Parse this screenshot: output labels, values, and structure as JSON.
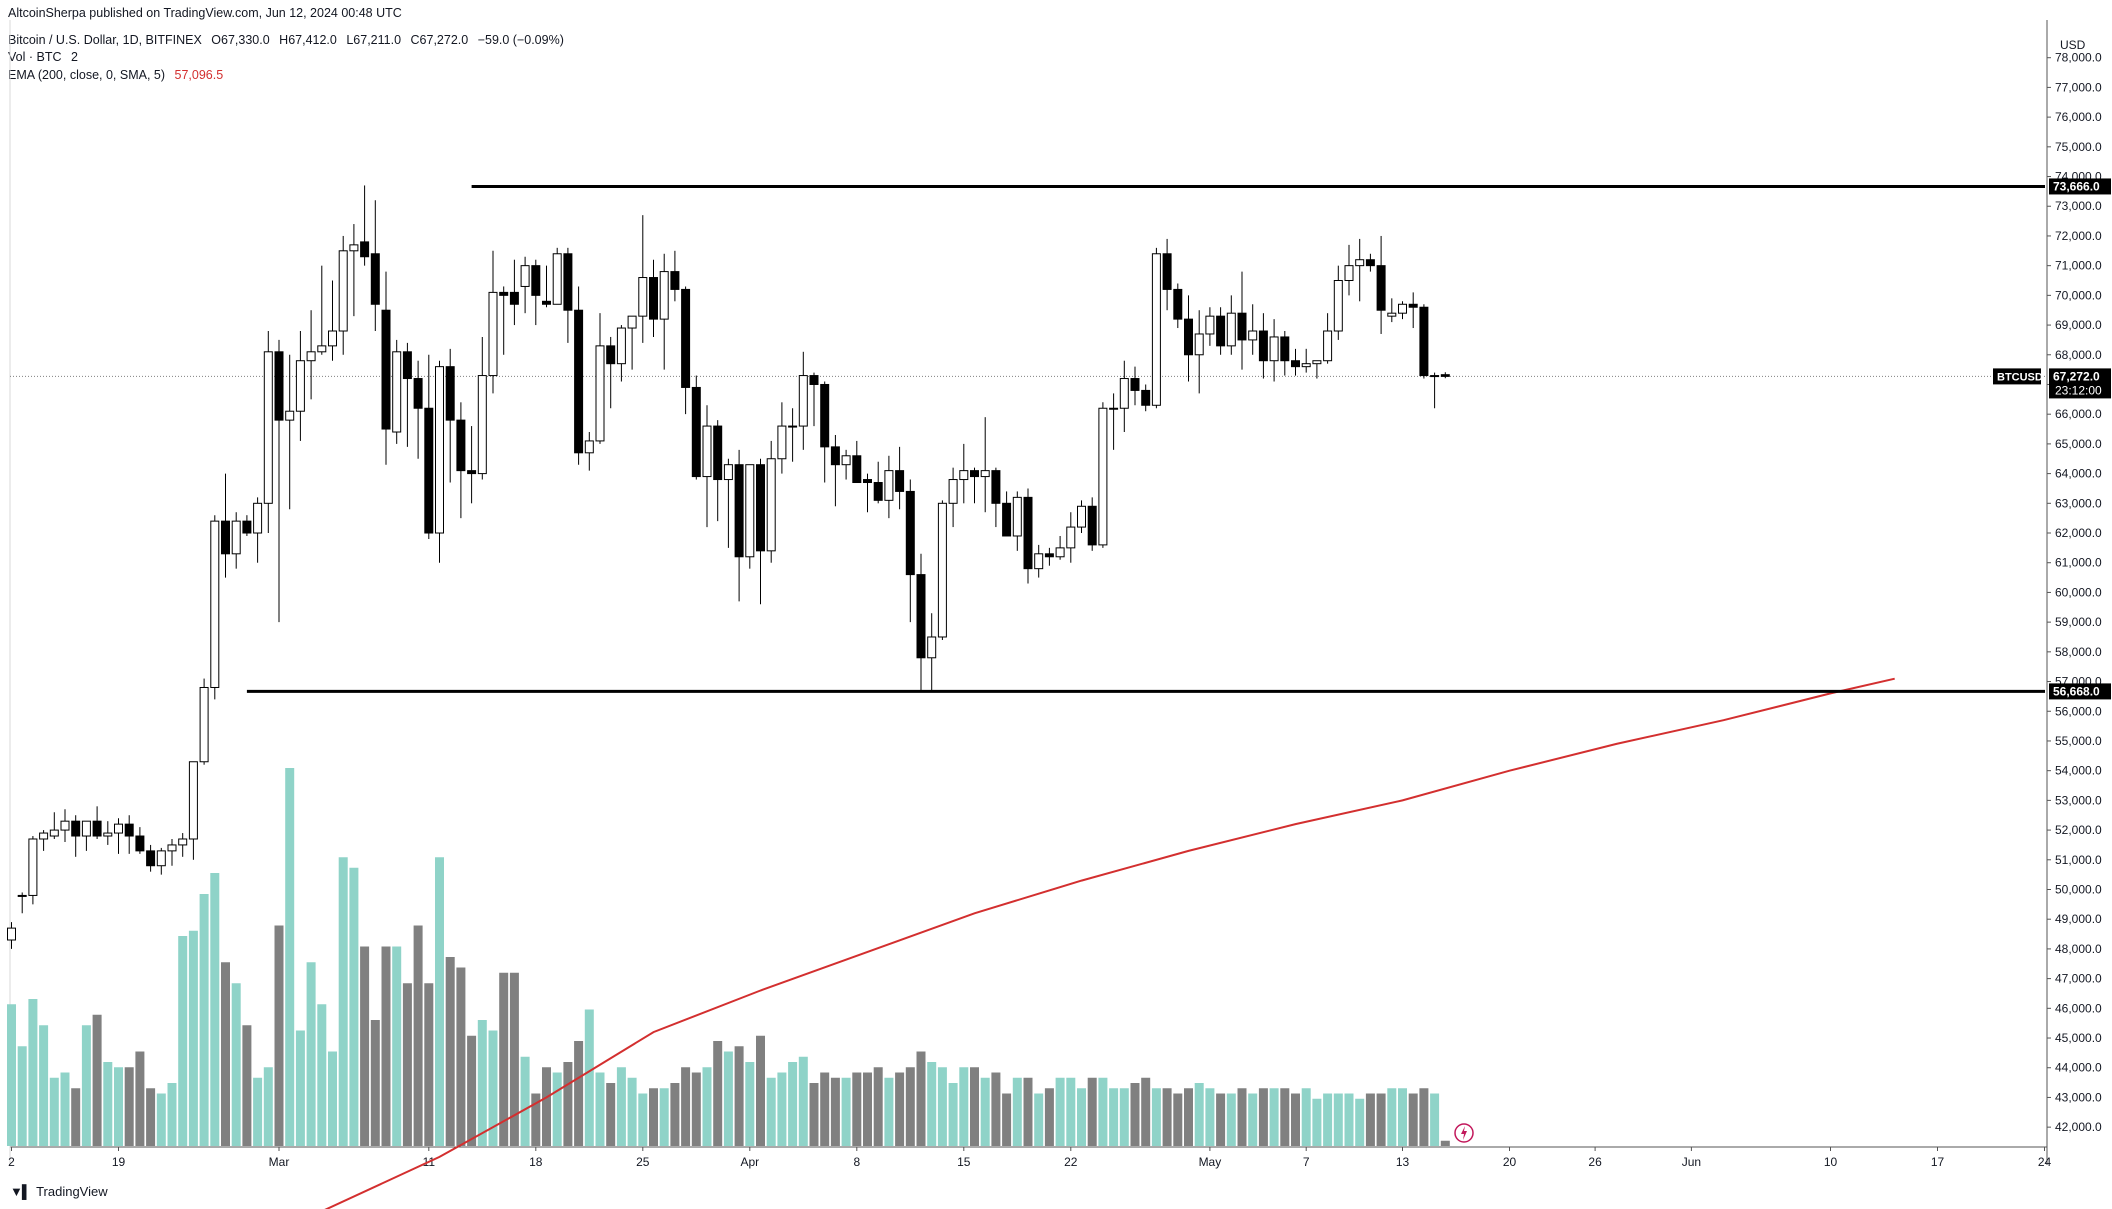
{
  "header": {
    "publisher": "AltcoinSherpa published on TradingView.com, Jun 12, 2024 00:48 UTC",
    "symbol": "Bitcoin / U.S. Dollar, 1D, BITFINEX",
    "open": "O67,330.0",
    "high": "H67,412.0",
    "low": "L67,211.0",
    "close": "C67,272.0",
    "change": "−59.0 (−0.09%)",
    "vol_label": "Vol · BTC",
    "vol_value": "2",
    "ema_label": "EMA (200, close, 0, SMA, 5)",
    "ema_value": "57,096.5"
  },
  "footer": {
    "logo_text": "TradingView"
  },
  "colors": {
    "up_body": "#ffffff",
    "down_body": "#000000",
    "candle_wick": "#000000",
    "vol_up": "#8fd3c8",
    "vol_down": "#808080",
    "ema": "#d32f2f",
    "level_line": "#000000",
    "price_line": "#808080"
  },
  "chart_data": {
    "type": "candlestick",
    "symbol_tag": "BTCUSD",
    "currency": "USD",
    "last_price": "67,272.0",
    "countdown": "23:12:00",
    "ylim": [
      41500,
      79000
    ],
    "y_ticks": [
      "42,000.0",
      "43,000.0",
      "44,000.0",
      "45,000.0",
      "46,000.0",
      "47,000.0",
      "48,000.0",
      "49,000.0",
      "50,000.0",
      "51,000.0",
      "52,000.0",
      "53,000.0",
      "54,000.0",
      "55,000.0",
      "56,000.0",
      "57,000.0",
      "58,000.0",
      "59,000.0",
      "60,000.0",
      "61,000.0",
      "62,000.0",
      "63,000.0",
      "64,000.0",
      "65,000.0",
      "66,000.0",
      "67,000.0",
      "68,000.0",
      "69,000.0",
      "70,000.0",
      "71,000.0",
      "72,000.0",
      "73,000.0",
      "74,000.0",
      "75,000.0",
      "76,000.0",
      "77,000.0",
      "78,000.0"
    ],
    "x_ticks": [
      {
        "label": "2",
        "index": 0
      },
      {
        "label": "19",
        "index": 10
      },
      {
        "label": "Mar",
        "index": 25
      },
      {
        "label": "11",
        "index": 39
      },
      {
        "label": "18",
        "index": 49
      },
      {
        "label": "25",
        "index": 59
      },
      {
        "label": "Apr",
        "index": 69
      },
      {
        "label": "8",
        "index": 79
      },
      {
        "label": "15",
        "index": 89
      },
      {
        "label": "22",
        "index": 99
      },
      {
        "label": "May",
        "index": 112
      },
      {
        "label": "7",
        "index": 121
      },
      {
        "label": "13",
        "index": 130
      },
      {
        "label": "20",
        "index": 140
      },
      {
        "label": "26",
        "index": 148
      },
      {
        "label": "Jun",
        "index": 157
      },
      {
        "label": "10",
        "index": 170
      },
      {
        "label": "17",
        "index": 180
      },
      {
        "label": "24",
        "index": 190
      }
    ],
    "levels": [
      {
        "value": 73666,
        "label": "73,666.0",
        "from_index": 43
      },
      {
        "value": 56668,
        "label": "56,668.0",
        "from_index": 22
      }
    ],
    "candles": [
      [
        48300,
        48900,
        48000,
        48700
      ],
      [
        49800,
        49900,
        49200,
        49800
      ],
      [
        49800,
        51800,
        49500,
        51700
      ],
      [
        51700,
        52000,
        51300,
        51900
      ],
      [
        51800,
        52600,
        51700,
        52000
      ],
      [
        52000,
        52700,
        51600,
        52300
      ],
      [
        52300,
        52500,
        51100,
        51800
      ],
      [
        51800,
        52200,
        51300,
        52300
      ],
      [
        52300,
        52800,
        51700,
        51800
      ],
      [
        51800,
        52300,
        51500,
        51900
      ],
      [
        51900,
        52400,
        51200,
        52200
      ],
      [
        52200,
        52500,
        51200,
        51800
      ],
      [
        51800,
        52100,
        51200,
        51300
      ],
      [
        51300,
        51500,
        50600,
        50800
      ],
      [
        50800,
        51400,
        50500,
        51300
      ],
      [
        51300,
        51700,
        50800,
        51500
      ],
      [
        51500,
        51900,
        51100,
        51700
      ],
      [
        51700,
        54300,
        51000,
        54300
      ],
      [
        54300,
        57100,
        54200,
        56800
      ],
      [
        56800,
        62600,
        56400,
        62400
      ],
      [
        62400,
        64000,
        60500,
        61300
      ],
      [
        61300,
        62700,
        60800,
        62400
      ],
      [
        62400,
        62600,
        61900,
        62000
      ],
      [
        62000,
        63200,
        61000,
        63000
      ],
      [
        63000,
        68800,
        62000,
        68100
      ],
      [
        68100,
        68500,
        59000,
        65800
      ],
      [
        65800,
        68000,
        62800,
        66100
      ],
      [
        66100,
        68800,
        65100,
        67800
      ],
      [
        67800,
        69500,
        66500,
        68100
      ],
      [
        68100,
        71000,
        68000,
        68300
      ],
      [
        68300,
        70500,
        67800,
        68800
      ],
      [
        68800,
        72000,
        68000,
        71500
      ],
      [
        71500,
        72400,
        69300,
        71700
      ],
      [
        71800,
        73700,
        71000,
        71300
      ],
      [
        71400,
        73200,
        68800,
        69700
      ],
      [
        69500,
        70800,
        64300,
        65500
      ],
      [
        65400,
        68500,
        65000,
        68100
      ],
      [
        68100,
        68400,
        64900,
        67200
      ],
      [
        67200,
        67800,
        64500,
        66200
      ],
      [
        66200,
        68000,
        61800,
        62000
      ],
      [
        62000,
        67800,
        61000,
        67600
      ],
      [
        67600,
        68200,
        63700,
        65800
      ],
      [
        65800,
        66400,
        62500,
        64100
      ],
      [
        64100,
        65600,
        63000,
        64000
      ],
      [
        64000,
        68600,
        63800,
        67300
      ],
      [
        67300,
        71500,
        66700,
        70100
      ],
      [
        70100,
        70300,
        68000,
        70000
      ],
      [
        70100,
        71200,
        69000,
        69700
      ],
      [
        70300,
        71300,
        69400,
        71000
      ],
      [
        71000,
        71200,
        69000,
        70000
      ],
      [
        69800,
        71000,
        69600,
        69700
      ],
      [
        69700,
        71600,
        69700,
        71400
      ],
      [
        71400,
        71600,
        68400,
        69500
      ],
      [
        69500,
        70300,
        64300,
        64700
      ],
      [
        64700,
        65400,
        64100,
        65100
      ],
      [
        65100,
        69400,
        65000,
        68300
      ],
      [
        68300,
        68600,
        66200,
        67700
      ],
      [
        67700,
        69000,
        67100,
        68900
      ],
      [
        68900,
        69200,
        67500,
        69300
      ],
      [
        69300,
        72700,
        68400,
        70600
      ],
      [
        70600,
        71200,
        68600,
        69200
      ],
      [
        69200,
        71400,
        67500,
        70800
      ],
      [
        70800,
        71500,
        69800,
        70200
      ],
      [
        70200,
        70300,
        66000,
        66900
      ],
      [
        66900,
        67300,
        63800,
        63900
      ],
      [
        63900,
        66300,
        62200,
        65600
      ],
      [
        65600,
        65800,
        62400,
        63800
      ],
      [
        63800,
        64500,
        61500,
        64300
      ],
      [
        64300,
        64800,
        59700,
        61200
      ],
      [
        61200,
        64200,
        60800,
        64300
      ],
      [
        64300,
        64500,
        59600,
        61400
      ],
      [
        61400,
        65100,
        61000,
        64500
      ],
      [
        64500,
        66400,
        64000,
        65600
      ],
      [
        65600,
        66200,
        64400,
        65600
      ],
      [
        65600,
        68100,
        64800,
        67300
      ],
      [
        67300,
        67400,
        65600,
        67000
      ],
      [
        67000,
        67100,
        63700,
        64900
      ],
      [
        64900,
        65300,
        62900,
        64300
      ],
      [
        64300,
        64800,
        63800,
        64600
      ],
      [
        64600,
        65100,
        63700,
        63700
      ],
      [
        63800,
        64000,
        62700,
        63700
      ],
      [
        63700,
        64400,
        63000,
        63100
      ],
      [
        63100,
        64600,
        62500,
        64100
      ],
      [
        64100,
        64900,
        62800,
        63400
      ],
      [
        63400,
        63800,
        59000,
        60600
      ],
      [
        60600,
        61300,
        56700,
        57800
      ],
      [
        57800,
        59300,
        56700,
        58500
      ],
      [
        58500,
        63100,
        58400,
        63000
      ],
      [
        63000,
        64200,
        62200,
        63800
      ],
      [
        63800,
        65000,
        63000,
        64100
      ],
      [
        64100,
        64200,
        63000,
        63900
      ],
      [
        63900,
        65900,
        62700,
        64100
      ],
      [
        64100,
        64200,
        62200,
        63000
      ],
      [
        63000,
        63400,
        61900,
        61900
      ],
      [
        61900,
        63400,
        61400,
        63200
      ],
      [
        63200,
        63500,
        60300,
        60800
      ],
      [
        60800,
        61600,
        60500,
        61300
      ],
      [
        61300,
        61500,
        60900,
        61200
      ],
      [
        61200,
        61900,
        61100,
        61500
      ],
      [
        61500,
        62700,
        61000,
        62200
      ],
      [
        62200,
        63100,
        62000,
        62900
      ],
      [
        62900,
        63200,
        61400,
        61600
      ],
      [
        61600,
        66400,
        61500,
        66200
      ],
      [
        66200,
        66700,
        64800,
        66200
      ],
      [
        66200,
        67800,
        65400,
        67200
      ],
      [
        67200,
        67600,
        66300,
        66800
      ],
      [
        66800,
        67000,
        66100,
        66300
      ],
      [
        66300,
        71600,
        66200,
        71400
      ],
      [
        71400,
        71900,
        69500,
        70200
      ],
      [
        70200,
        70400,
        68900,
        69200
      ],
      [
        69200,
        70000,
        67100,
        68000
      ],
      [
        68000,
        69500,
        66700,
        68700
      ],
      [
        68700,
        69600,
        68300,
        69300
      ],
      [
        69300,
        69600,
        68000,
        68300
      ],
      [
        68300,
        70000,
        68000,
        69400
      ],
      [
        69400,
        70800,
        67500,
        68500
      ],
      [
        68500,
        69700,
        68000,
        68800
      ],
      [
        68800,
        69400,
        67200,
        67800
      ],
      [
        67800,
        69200,
        67100,
        68600
      ],
      [
        68600,
        68800,
        67300,
        67800
      ],
      [
        67800,
        68200,
        67300,
        67600
      ],
      [
        67600,
        68200,
        67400,
        67700
      ],
      [
        67700,
        67800,
        67200,
        67800
      ],
      [
        67800,
        69400,
        67700,
        68800
      ],
      [
        68800,
        71000,
        68500,
        70500
      ],
      [
        70500,
        71700,
        70000,
        71000
      ],
      [
        71000,
        71900,
        69800,
        71200
      ],
      [
        71200,
        71400,
        70800,
        71000
      ],
      [
        71000,
        72000,
        68700,
        69500
      ],
      [
        69300,
        69900,
        69100,
        69400
      ],
      [
        69400,
        69800,
        69200,
        69700
      ],
      [
        69700,
        70100,
        68900,
        69600
      ],
      [
        69600,
        69700,
        67200,
        67300
      ],
      [
        67300,
        67400,
        66200,
        67300
      ],
      [
        67330,
        67412,
        67211,
        67272
      ]
    ],
    "volume": [
      [
        2700,
        0
      ],
      [
        1900,
        0
      ],
      [
        2800,
        0
      ],
      [
        2300,
        0
      ],
      [
        1300,
        0
      ],
      [
        1400,
        0
      ],
      [
        1100,
        0
      ],
      [
        2300,
        0
      ],
      [
        2500,
        0
      ],
      [
        1600,
        0
      ],
      [
        1500,
        0
      ],
      [
        1500,
        0
      ],
      [
        1800,
        0
      ],
      [
        1100,
        0
      ],
      [
        1000,
        0
      ],
      [
        1200,
        0
      ],
      [
        4000,
        0
      ],
      [
        4100,
        0
      ],
      [
        4800,
        0
      ],
      [
        5200,
        0
      ],
      [
        3500,
        0
      ],
      [
        3100,
        0
      ],
      [
        2300,
        0
      ],
      [
        1300,
        0
      ],
      [
        1500,
        0
      ],
      [
        4200,
        0
      ],
      [
        7200,
        0
      ],
      [
        2200,
        0
      ],
      [
        3500,
        0
      ],
      [
        2700,
        0
      ],
      [
        1800,
        0
      ],
      [
        5500,
        0
      ],
      [
        5300,
        0
      ],
      [
        3800,
        0
      ],
      [
        2400,
        0
      ],
      [
        3800,
        0
      ],
      [
        3800,
        0
      ],
      [
        3100,
        0
      ],
      [
        4200,
        0
      ],
      [
        3100,
        0
      ],
      [
        5500,
        0
      ],
      [
        3600,
        0
      ],
      [
        3400,
        0
      ],
      [
        2100,
        0
      ],
      [
        2400,
        0
      ],
      [
        2200,
        0
      ],
      [
        3300,
        0
      ],
      [
        3300,
        0
      ],
      [
        1700,
        0
      ],
      [
        1000,
        0
      ],
      [
        1500,
        0
      ],
      [
        1400,
        0
      ],
      [
        1600,
        0
      ],
      [
        2000,
        0
      ],
      [
        2600,
        0
      ],
      [
        1400,
        0
      ],
      [
        1200,
        0
      ],
      [
        1500,
        0
      ],
      [
        1300,
        0
      ],
      [
        1000,
        0
      ],
      [
        1100,
        0
      ],
      [
        1100,
        0
      ],
      [
        1200,
        0
      ],
      [
        1500,
        0
      ],
      [
        1400,
        0
      ],
      [
        1500,
        0
      ],
      [
        2000,
        0
      ],
      [
        1800,
        0
      ],
      [
        1900,
        0
      ],
      [
        1600,
        0
      ],
      [
        2100,
        0
      ],
      [
        1300,
        0
      ],
      [
        1400,
        0
      ],
      [
        1600,
        0
      ],
      [
        1700,
        0
      ],
      [
        1200,
        0
      ],
      [
        1400,
        0
      ],
      [
        1300,
        0
      ],
      [
        1300,
        0
      ],
      [
        1400,
        0
      ],
      [
        1400,
        0
      ],
      [
        1500,
        0
      ],
      [
        1300,
        0
      ],
      [
        1400,
        0
      ],
      [
        1500,
        0
      ],
      [
        1800,
        0
      ],
      [
        1600,
        0
      ],
      [
        1500,
        0
      ],
      [
        1200,
        0
      ],
      [
        1500,
        0
      ],
      [
        1500,
        0
      ],
      [
        1300,
        0
      ],
      [
        1400,
        0
      ],
      [
        1000,
        0
      ],
      [
        1300,
        0
      ],
      [
        1300,
        0
      ],
      [
        1000,
        0
      ],
      [
        1100,
        0
      ],
      [
        1300,
        0
      ],
      [
        1300,
        0
      ],
      [
        1100,
        0
      ],
      [
        1300,
        0
      ],
      [
        1300,
        0
      ],
      [
        1100,
        0
      ],
      [
        1100,
        0
      ],
      [
        1200,
        0
      ],
      [
        1300,
        0
      ],
      [
        1100,
        0
      ],
      [
        1100,
        0
      ],
      [
        1000,
        0
      ],
      [
        1100,
        0
      ],
      [
        1200,
        0
      ],
      [
        1100,
        0
      ],
      [
        1000,
        0
      ],
      [
        1000,
        0
      ],
      [
        1100,
        0
      ],
      [
        1000,
        0
      ],
      [
        1100,
        0
      ],
      [
        1100,
        0
      ],
      [
        1100,
        0
      ],
      [
        1000,
        0
      ],
      [
        1100,
        0
      ],
      [
        900,
        0
      ],
      [
        1000,
        0
      ],
      [
        1000,
        0
      ],
      [
        1000,
        0
      ],
      [
        900,
        0
      ],
      [
        1000,
        0
      ],
      [
        1000,
        0
      ],
      [
        1100,
        0
      ],
      [
        1100,
        0
      ],
      [
        1000,
        0
      ],
      [
        1100,
        0
      ],
      [
        1000,
        0
      ],
      [
        100,
        0
      ]
    ],
    "ema": [
      [
        25,
        38500
      ],
      [
        40,
        41000
      ],
      [
        50,
        43000
      ],
      [
        60,
        45200
      ],
      [
        70,
        46600
      ],
      [
        80,
        47900
      ],
      [
        90,
        49200
      ],
      [
        100,
        50300
      ],
      [
        110,
        51300
      ],
      [
        120,
        52200
      ],
      [
        130,
        53000
      ],
      [
        140,
        54000
      ],
      [
        150,
        54900
      ],
      [
        160,
        55700
      ],
      [
        170,
        56600
      ],
      [
        176,
        57096
      ]
    ]
  }
}
